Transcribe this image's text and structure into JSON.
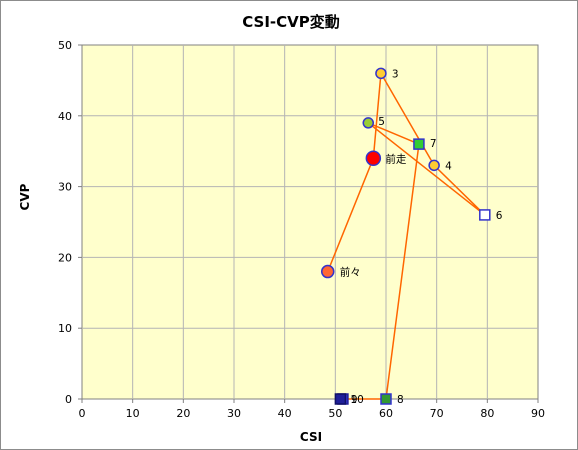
{
  "chart_data": {
    "type": "scatter",
    "title": "CSI-CVP変動",
    "xlabel": "CSI",
    "ylabel": "CVP",
    "xlim": [
      0,
      90
    ],
    "ylim": [
      0,
      50
    ],
    "xticks": [
      0,
      10,
      20,
      30,
      40,
      50,
      60,
      70,
      80,
      90
    ],
    "yticks": [
      0,
      10,
      20,
      30,
      40,
      50
    ],
    "grid": true,
    "plot_background": "#ffffcc",
    "grid_color": "#b4b4b4",
    "line_color": "#ff6600",
    "points": [
      {
        "label": "前々",
        "x": 48.5,
        "y": 18,
        "shape": "circle",
        "fill": "#ff6633",
        "stroke": "#3333cc",
        "size": "medium"
      },
      {
        "label": "前走",
        "x": 57.5,
        "y": 34,
        "shape": "circle",
        "fill": "#ff0000",
        "stroke": "#3333cc",
        "size": "large"
      },
      {
        "label": "3",
        "x": 59,
        "y": 46,
        "shape": "circle",
        "fill": "#ffcc33",
        "stroke": "#3333cc",
        "size": "small"
      },
      {
        "label": "4",
        "x": 69.5,
        "y": 33,
        "shape": "circle",
        "fill": "#ffcc33",
        "stroke": "#3333cc",
        "size": "small"
      },
      {
        "label": "5",
        "x": 56.5,
        "y": 39,
        "shape": "circle",
        "fill": "#99cc33",
        "stroke": "#3333cc",
        "size": "small"
      },
      {
        "label": "6",
        "x": 79.5,
        "y": 26,
        "shape": "square",
        "fill": "#ffffff",
        "stroke": "#3333cc",
        "size": "small"
      },
      {
        "label": "7",
        "x": 66.5,
        "y": 36,
        "shape": "square",
        "fill": "#33cc33",
        "stroke": "#3333cc",
        "size": "small"
      },
      {
        "label": "8",
        "x": 60,
        "y": 0,
        "shape": "square",
        "fill": "#339933",
        "stroke": "#3333cc",
        "size": "small"
      },
      {
        "label": "9",
        "x": 51.5,
        "y": 0,
        "shape": "square",
        "fill": "#3333cc",
        "stroke": "#222299",
        "size": "small"
      },
      {
        "label": "10",
        "x": 51,
        "y": 0,
        "shape": "square",
        "fill": "#1f1f99",
        "stroke": "#111166",
        "size": "small"
      }
    ],
    "connection_order": [
      "前々",
      "前走",
      "3",
      "4",
      "6",
      "5",
      "7",
      "8",
      "9",
      "10"
    ]
  }
}
